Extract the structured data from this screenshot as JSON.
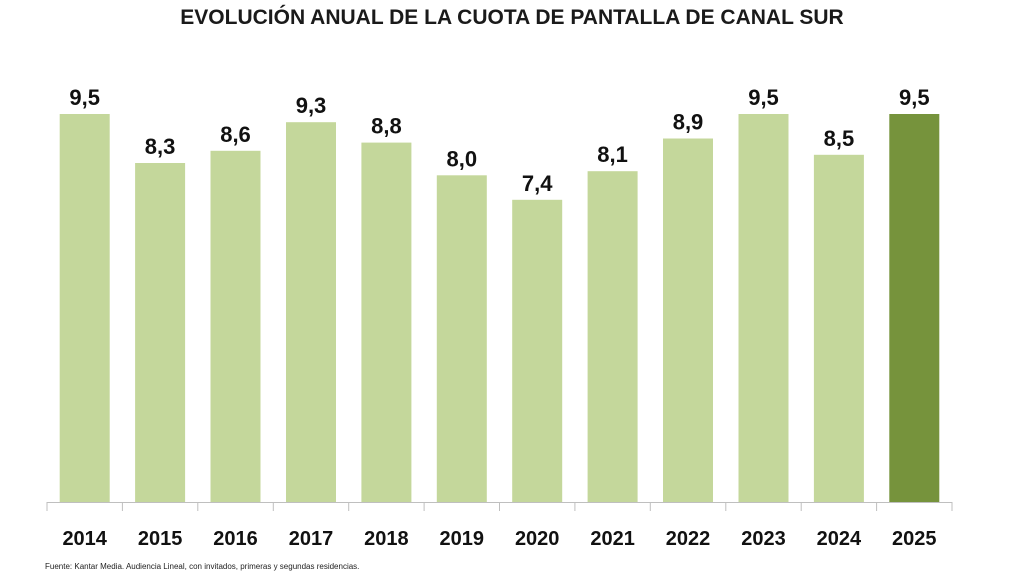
{
  "chart_data": {
    "type": "bar",
    "title": "EVOLUCIÓN ANUAL DE LA CUOTA DE PANTALLA DE CANAL SUR",
    "xlabel": "",
    "ylabel": "",
    "ylim": [
      0,
      9.5
    ],
    "grid": false,
    "legend": "none",
    "categories": [
      "2014",
      "2015",
      "2016",
      "2017",
      "2018",
      "2019",
      "2020",
      "2021",
      "2022",
      "2023",
      "2024",
      "2025"
    ],
    "values": [
      9.5,
      8.3,
      8.6,
      9.3,
      8.8,
      8.0,
      7.4,
      8.1,
      8.9,
      9.5,
      8.5,
      9.5
    ],
    "value_labels": [
      "9,5",
      "8,3",
      "8,6",
      "9,3",
      "8,8",
      "8,0",
      "7,4",
      "8,1",
      "8,9",
      "9,5",
      "8,5",
      "9,5"
    ],
    "highlight_index": 11,
    "colors": {
      "bar": "#c4d79b",
      "highlight": "#76933c",
      "axis": "#bfbfbf"
    }
  },
  "source": "Fuente: Kantar Media. Audiencia Lineal, con invitados, primeras y segundas residencias."
}
